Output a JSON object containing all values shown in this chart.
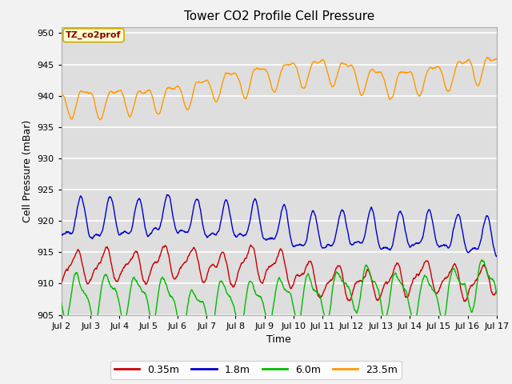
{
  "title": "Tower CO2 Profile Cell Pressure",
  "ylabel": "Cell Pressure (mBar)",
  "xlabel": "Time",
  "annotation": "TZ_co2prof",
  "ylim": [
    905,
    951
  ],
  "yticks": [
    905,
    910,
    915,
    920,
    925,
    930,
    935,
    940,
    945,
    950
  ],
  "xtick_labels": [
    "Jul 2",
    "Jul 3",
    "Jul 4",
    "Jul 5",
    "Jul 6",
    "Jul 7",
    "Jul 8",
    "Jul 9",
    "Jul 10",
    "Jul 11",
    "Jul 12",
    "Jul 13",
    "Jul 14",
    "Jul 15",
    "Jul 16",
    "Jul 17"
  ],
  "legend_labels": [
    "0.35m",
    "1.8m",
    "6.0m",
    "23.5m"
  ],
  "line_colors": [
    "#cc0000",
    "#0000cc",
    "#00bb00",
    "#ff9900"
  ],
  "plot_bg_color": "#dedede",
  "fig_bg_color": "#f2f2f2",
  "title_fontsize": 11,
  "axis_fontsize": 9,
  "tick_fontsize": 8
}
